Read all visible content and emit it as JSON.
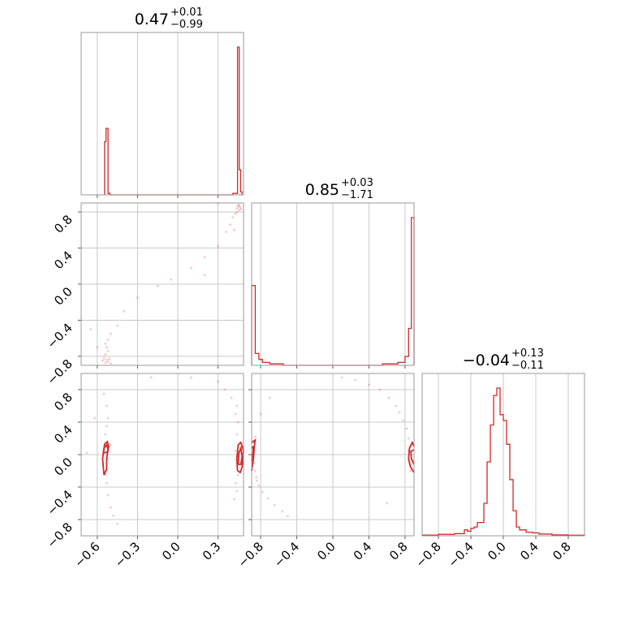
{
  "colors": {
    "series": "#d62728",
    "grid": "#c8c8c8",
    "frame": "#999999"
  },
  "chart_data": {
    "type": "corner",
    "params": [
      {
        "title": {
          "value": "0.47",
          "upper": "+0.01",
          "lower": "−0.99"
        },
        "range": [
          -0.72,
          0.49
        ],
        "ticks": [
          -0.6,
          -0.3,
          0.0,
          0.3
        ],
        "tick_labels": [
          "−0.6",
          "−0.3",
          "0.0",
          "0.3"
        ],
        "hist": {
          "bins": [
            [
              -0.545,
              0.0
            ],
            [
              -0.545,
              0.36
            ],
            [
              -0.535,
              0.36
            ],
            [
              -0.535,
              0.45
            ],
            [
              -0.52,
              0.45
            ],
            [
              -0.52,
              0.01
            ],
            [
              -0.505,
              0.01
            ],
            [
              -0.505,
              0.0
            ],
            [
              0.41,
              0.0
            ],
            [
              0.41,
              0.01
            ],
            [
              0.445,
              0.01
            ],
            [
              0.445,
              1.0
            ],
            [
              0.458,
              1.0
            ],
            [
              0.458,
              0.17
            ],
            [
              0.468,
              0.17
            ],
            [
              0.468,
              0.02
            ],
            [
              0.478,
              0.02
            ],
            [
              0.478,
              0.0
            ]
          ]
        }
      },
      {
        "title": {
          "value": "0.85",
          "upper": "+0.03",
          "lower": "−1.71"
        },
        "range": [
          -0.9,
          0.9
        ],
        "ticks": [
          -0.8,
          -0.4,
          0.0,
          0.4,
          0.8
        ],
        "tick_labels": [
          "−0.8",
          "−0.4",
          "0.0",
          "0.4",
          "0.8"
        ],
        "hist": {
          "bins": [
            [
              -0.9,
              0.0
            ],
            [
              -0.9,
              0.54
            ],
            [
              -0.86,
              0.54
            ],
            [
              -0.86,
              0.08
            ],
            [
              -0.82,
              0.08
            ],
            [
              -0.82,
              0.04
            ],
            [
              -0.78,
              0.04
            ],
            [
              -0.78,
              0.02
            ],
            [
              -0.7,
              0.02
            ],
            [
              -0.7,
              0.01
            ],
            [
              -0.55,
              0.01
            ],
            [
              -0.55,
              0.0
            ],
            [
              0.55,
              0.0
            ],
            [
              0.55,
              0.01
            ],
            [
              0.72,
              0.01
            ],
            [
              0.72,
              0.02
            ],
            [
              0.8,
              0.02
            ],
            [
              0.8,
              0.06
            ],
            [
              0.84,
              0.06
            ],
            [
              0.84,
              0.25
            ],
            [
              0.87,
              0.25
            ],
            [
              0.87,
              1.0
            ],
            [
              0.9,
              1.0
            ],
            [
              0.9,
              0.0
            ]
          ]
        }
      },
      {
        "title": {
          "value": "−0.04",
          "upper": "+0.13",
          "lower": "−0.11"
        },
        "range": [
          -1.0,
          1.0
        ],
        "ticks": [
          -0.8,
          -0.4,
          0.0,
          0.4,
          0.8
        ],
        "tick_labels": [
          "−0.8",
          "−0.4",
          "0.0",
          "0.4",
          "0.8"
        ],
        "hist": {
          "bins": [
            [
              -1.0,
              0.0
            ],
            [
              -1.0,
              0.005
            ],
            [
              -0.8,
              0.005
            ],
            [
              -0.8,
              0.01
            ],
            [
              -0.6,
              0.01
            ],
            [
              -0.6,
              0.015
            ],
            [
              -0.48,
              0.015
            ],
            [
              -0.48,
              0.04
            ],
            [
              -0.44,
              0.04
            ],
            [
              -0.44,
              0.03
            ],
            [
              -0.4,
              0.03
            ],
            [
              -0.4,
              0.05
            ],
            [
              -0.36,
              0.05
            ],
            [
              -0.36,
              0.06
            ],
            [
              -0.32,
              0.06
            ],
            [
              -0.32,
              0.09
            ],
            [
              -0.28,
              0.09
            ],
            [
              -0.28,
              0.09
            ],
            [
              -0.24,
              0.09
            ],
            [
              -0.24,
              0.22
            ],
            [
              -0.2,
              0.22
            ],
            [
              -0.2,
              0.5
            ],
            [
              -0.16,
              0.5
            ],
            [
              -0.16,
              0.75
            ],
            [
              -0.12,
              0.75
            ],
            [
              -0.12,
              0.95
            ],
            [
              -0.08,
              0.95
            ],
            [
              -0.08,
              1.0
            ],
            [
              -0.04,
              1.0
            ],
            [
              -0.04,
              0.82
            ],
            [
              0.0,
              0.82
            ],
            [
              0.0,
              0.78
            ],
            [
              0.04,
              0.78
            ],
            [
              0.04,
              0.62
            ],
            [
              0.08,
              0.62
            ],
            [
              0.08,
              0.38
            ],
            [
              0.12,
              0.38
            ],
            [
              0.12,
              0.17
            ],
            [
              0.16,
              0.17
            ],
            [
              0.16,
              0.06
            ],
            [
              0.2,
              0.06
            ],
            [
              0.2,
              0.04
            ],
            [
              0.28,
              0.04
            ],
            [
              0.28,
              0.025
            ],
            [
              0.36,
              0.025
            ],
            [
              0.36,
              0.02
            ],
            [
              0.44,
              0.02
            ],
            [
              0.44,
              0.012
            ],
            [
              0.6,
              0.012
            ],
            [
              0.6,
              0.006
            ],
            [
              0.8,
              0.006
            ],
            [
              0.8,
              0.004
            ],
            [
              1.0,
              0.004
            ],
            [
              1.0,
              0.0
            ]
          ]
        }
      }
    ],
    "panels_2d": [
      {
        "id": "p1-p0",
        "x_param": 0,
        "y_param": 1,
        "points": [
          [
            0.44,
            0.84
          ],
          [
            0.45,
            0.86
          ],
          [
            0.455,
            0.82
          ],
          [
            0.46,
            0.87
          ],
          [
            0.465,
            0.85
          ],
          [
            0.47,
            0.83
          ],
          [
            0.45,
            0.88
          ],
          [
            0.44,
            0.8
          ],
          [
            0.43,
            0.78
          ],
          [
            0.41,
            0.74
          ],
          [
            0.39,
            0.66
          ],
          [
            0.36,
            0.58
          ],
          [
            0.3,
            0.42
          ],
          [
            0.2,
            0.3
          ],
          [
            0.1,
            0.18
          ],
          [
            -0.05,
            0.05
          ],
          [
            -0.15,
            -0.02
          ],
          [
            -0.3,
            -0.15
          ],
          [
            -0.4,
            -0.3
          ],
          [
            -0.45,
            -0.46
          ],
          [
            -0.5,
            -0.55
          ],
          [
            -0.52,
            -0.62
          ],
          [
            -0.54,
            -0.66
          ],
          [
            -0.53,
            -0.7
          ],
          [
            -0.52,
            -0.74
          ],
          [
            -0.54,
            -0.78
          ],
          [
            -0.55,
            -0.82
          ],
          [
            -0.53,
            -0.84
          ],
          [
            -0.52,
            -0.86
          ],
          [
            -0.54,
            -0.87
          ],
          [
            -0.51,
            -0.83
          ],
          [
            -0.56,
            -0.85
          ],
          [
            -0.5,
            -0.88
          ],
          [
            -0.6,
            -0.7
          ],
          [
            -0.65,
            -0.5
          ],
          [
            0.2,
            0.1
          ],
          [
            0.3,
            0.9
          ],
          [
            0.42,
            0.6
          ]
        ],
        "contours": []
      },
      {
        "id": "p2-p0",
        "x_param": 0,
        "y_param": 2,
        "points": [
          [
            -0.54,
            0.25
          ],
          [
            -0.53,
            0.35
          ],
          [
            -0.52,
            0.45
          ],
          [
            -0.53,
            0.6
          ],
          [
            -0.55,
            0.75
          ],
          [
            -0.54,
            -0.25
          ],
          [
            -0.53,
            -0.35
          ],
          [
            -0.52,
            -0.5
          ],
          [
            -0.5,
            -0.65
          ],
          [
            -0.48,
            -0.75
          ],
          [
            -0.45,
            -0.85
          ],
          [
            -0.55,
            0.05
          ],
          [
            -0.52,
            -0.05
          ],
          [
            -0.56,
            -0.12
          ],
          [
            -0.5,
            0.12
          ],
          [
            0.44,
            0.6
          ],
          [
            0.43,
            0.5
          ],
          [
            0.45,
            0.4
          ],
          [
            0.44,
            0.25
          ],
          [
            0.46,
            0.15
          ],
          [
            0.45,
            -0.25
          ],
          [
            0.43,
            -0.35
          ],
          [
            0.44,
            -0.45
          ],
          [
            0.42,
            -0.55
          ],
          [
            0.45,
            -0.12
          ],
          [
            0.47,
            0.02
          ],
          [
            0.43,
            0.05
          ],
          [
            0.4,
            0.7
          ],
          [
            0.35,
            0.8
          ],
          [
            0.3,
            0.9
          ],
          [
            0.1,
            0.95
          ],
          [
            -0.2,
            0.95
          ],
          [
            -0.62,
            0.45
          ],
          [
            -0.68,
            0.02
          ]
        ],
        "contours": [
          [
            [
              -0.55,
              -0.25
            ],
            [
              -0.56,
              -0.05
            ],
            [
              -0.55,
              0.08
            ],
            [
              -0.53,
              0.12
            ],
            [
              -0.52,
              0.06
            ],
            [
              -0.53,
              -0.05
            ],
            [
              -0.53,
              -0.18
            ],
            [
              -0.55,
              -0.25
            ]
          ],
          [
            [
              -0.555,
              0.02
            ],
            [
              -0.545,
              0.13
            ],
            [
              -0.525,
              0.16
            ],
            [
              -0.515,
              0.1
            ],
            [
              -0.525,
              0.03
            ],
            [
              -0.555,
              0.02
            ]
          ],
          [
            [
              0.445,
              -0.2
            ],
            [
              0.44,
              -0.05
            ],
            [
              0.45,
              0.12
            ],
            [
              0.47,
              0.15
            ],
            [
              0.49,
              0.05
            ],
            [
              0.48,
              -0.15
            ],
            [
              0.465,
              -0.22
            ],
            [
              0.445,
              -0.2
            ]
          ],
          [
            [
              0.45,
              -0.12
            ],
            [
              0.455,
              0.02
            ],
            [
              0.47,
              0.08
            ],
            [
              0.48,
              -0.02
            ],
            [
              0.47,
              -0.12
            ],
            [
              0.45,
              -0.12
            ]
          ]
        ]
      },
      {
        "id": "p2-p1",
        "x_param": 1,
        "y_param": 2,
        "points": [
          [
            -0.88,
            0.05
          ],
          [
            -0.87,
            -0.1
          ],
          [
            -0.86,
            -0.2
          ],
          [
            -0.85,
            -0.28
          ],
          [
            -0.82,
            -0.38
          ],
          [
            -0.78,
            -0.46
          ],
          [
            -0.72,
            -0.54
          ],
          [
            -0.65,
            -0.62
          ],
          [
            -0.56,
            -0.7
          ],
          [
            -0.5,
            -0.76
          ],
          [
            -0.88,
            0.15
          ],
          [
            -0.86,
            0.22
          ],
          [
            -0.84,
            -0.32
          ],
          [
            0.84,
            0.05
          ],
          [
            0.85,
            -0.1
          ],
          [
            0.86,
            -0.2
          ],
          [
            0.84,
            0.2
          ],
          [
            0.82,
            0.32
          ],
          [
            0.78,
            0.42
          ],
          [
            0.74,
            0.52
          ],
          [
            0.7,
            0.6
          ],
          [
            0.62,
            0.7
          ],
          [
            0.52,
            0.8
          ],
          [
            0.4,
            0.86
          ],
          [
            0.25,
            0.92
          ],
          [
            0.1,
            0.95
          ],
          [
            -0.7,
            0.7
          ],
          [
            -0.8,
            0.5
          ],
          [
            0.6,
            -0.6
          ]
        ],
        "contours": [
          [
            [
              -0.9,
              -0.2
            ],
            [
              -0.88,
              -0.05
            ],
            [
              -0.87,
              0.1
            ],
            [
              -0.86,
              0.18
            ],
            [
              -0.9,
              0.15
            ]
          ],
          [
            [
              -0.9,
              -0.08
            ],
            [
              -0.885,
              0.02
            ],
            [
              -0.88,
              0.1
            ],
            [
              -0.9,
              0.08
            ]
          ],
          [
            [
              0.9,
              -0.22
            ],
            [
              0.86,
              -0.15
            ],
            [
              0.84,
              -0.05
            ],
            [
              0.85,
              0.08
            ],
            [
              0.88,
              0.15
            ],
            [
              0.9,
              0.1
            ]
          ],
          [
            [
              0.9,
              -0.12
            ],
            [
              0.87,
              -0.05
            ],
            [
              0.865,
              0.04
            ],
            [
              0.9,
              0.06
            ]
          ]
        ]
      }
    ]
  }
}
